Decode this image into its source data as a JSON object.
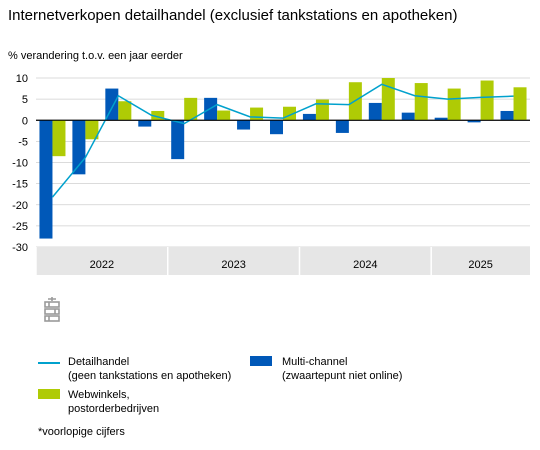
{
  "title": "Internetverkopen detailhandel (exclusief tankstations en apotheken)",
  "unit_label": "% verandering t.o.v. een jaar eerder",
  "footnote": "*voorlopige cijfers",
  "legend": {
    "detailhandel": [
      "Detailhandel",
      "(geen tankstations en apotheken)"
    ],
    "webwinkels": [
      "Webwinkels,",
      "postorderbedrijven"
    ],
    "multichannel": [
      "Multi-channel",
      "(zwaartepunt niet online)"
    ]
  },
  "colors": {
    "detailhandel": "#00a1cd",
    "webwinkels": "#afcb05",
    "multichannel": "#0058b8",
    "axis_band": "#e6e6e6"
  },
  "chart_data": {
    "type": "bar",
    "ylim": [
      -30,
      10
    ],
    "yticks": [
      10,
      5,
      0,
      -5,
      -10,
      -15,
      -20,
      -25,
      -30
    ],
    "years": [
      {
        "label": "2022",
        "quarters": 4
      },
      {
        "label": "2023",
        "quarters": 4
      },
      {
        "label": "2024",
        "quarters": 4
      },
      {
        "label": "2025",
        "quarters": 3
      }
    ],
    "series": [
      {
        "name": "Multi-channel (zwaartepunt niet online)",
        "kind": "bar",
        "values": [
          -28,
          -12.8,
          7.5,
          -1.5,
          -9.2,
          5.3,
          -2.2,
          -3.3,
          1.5,
          -3,
          4.1,
          1.8,
          0.6,
          -0.5,
          2.2
        ]
      },
      {
        "name": "Webwinkels, postorderbedrijven",
        "kind": "bar",
        "values": [
          -8.5,
          -4.5,
          4.5,
          2.2,
          5.3,
          2.3,
          3,
          3.2,
          4.9,
          9,
          10,
          8.8,
          7.5,
          9.4,
          7.8
        ]
      },
      {
        "name": "Detailhandel (geen tankstations en apotheken)",
        "kind": "line",
        "values": [
          -18.2,
          -8.8,
          5.8,
          1.2,
          -0.8,
          3.7,
          0.8,
          0.5,
          3.9,
          3.7,
          8.5,
          5.8,
          5,
          5.4,
          5.7
        ]
      }
    ]
  }
}
